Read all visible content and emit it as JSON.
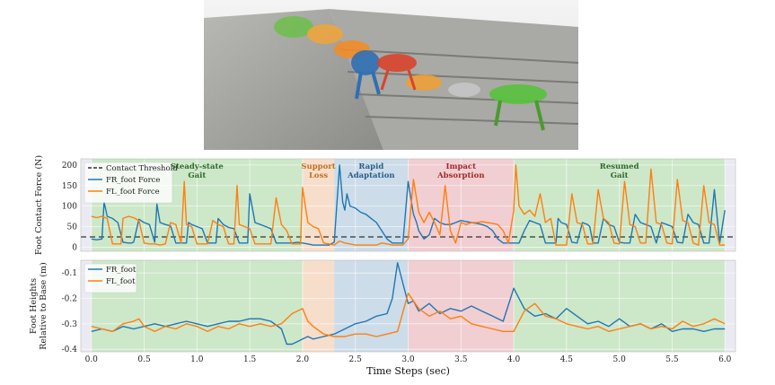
{
  "photo": {
    "description_icon": "robot-stair-climbing-image"
  },
  "colors": {
    "fr": "#1f77b4",
    "fl": "#ff7f0e",
    "threshold": "#333333",
    "phase_green": "#c8e6c2",
    "phase_orange": "#f9dcc4",
    "phase_blue": "#c7d9e8",
    "phase_red": "#f2c9cc",
    "plot_bg": "#eaeaf2"
  },
  "phases": [
    {
      "label": "Steady-state\nGait",
      "start": 0.0,
      "end": 2.0,
      "color": "#c8e6c2",
      "text_color": "#2e6b2a"
    },
    {
      "label": "Support\nLoss",
      "start": 2.0,
      "end": 2.3,
      "color": "#f9dcc4",
      "text_color": "#c0701f"
    },
    {
      "label": "Rapid\nAdaptation",
      "start": 2.3,
      "end": 3.0,
      "color": "#c7d9e8",
      "text_color": "#2a5d8a"
    },
    {
      "label": "Impact\nAbsorption",
      "start": 3.0,
      "end": 4.0,
      "color": "#f2c9cc",
      "text_color": "#a02a2a"
    },
    {
      "label": "Resumed\nGait",
      "start": 4.0,
      "end": 6.0,
      "color": "#c8e6c2",
      "text_color": "#2e6b2a"
    }
  ],
  "chart_data": [
    {
      "type": "line",
      "ylabel": "Foot Contact Force (N)",
      "xlim": [
        -0.1,
        6.1
      ],
      "ylim": [
        -10,
        215
      ],
      "yticks": [
        0,
        50,
        100,
        150,
        200
      ],
      "grid": true,
      "legend_position": "upper-left",
      "threshold": {
        "name": "Contact Threshold",
        "value": 25
      },
      "series": [
        {
          "name": "FR_foot Force",
          "color": "#1f77b4",
          "x": [
            0.0,
            0.05,
            0.1,
            0.12,
            0.15,
            0.2,
            0.25,
            0.3,
            0.35,
            0.38,
            0.4,
            0.45,
            0.5,
            0.55,
            0.6,
            0.62,
            0.65,
            0.7,
            0.75,
            0.8,
            0.85,
            0.9,
            0.92,
            0.95,
            1.0,
            1.05,
            1.1,
            1.15,
            1.18,
            1.2,
            1.25,
            1.3,
            1.35,
            1.4,
            1.45,
            1.48,
            1.5,
            1.55,
            1.6,
            1.65,
            1.7,
            1.75,
            1.78,
            1.8,
            1.85,
            1.9,
            1.95,
            2.0,
            2.05,
            2.1,
            2.15,
            2.2,
            2.25,
            2.3,
            2.35,
            2.38,
            2.4,
            2.42,
            2.45,
            2.5,
            2.55,
            2.6,
            2.65,
            2.7,
            2.75,
            2.8,
            2.85,
            2.9,
            2.95,
            3.0,
            3.05,
            3.08,
            3.1,
            3.15,
            3.2,
            3.25,
            3.3,
            3.35,
            3.4,
            3.45,
            3.5,
            3.55,
            3.6,
            3.65,
            3.7,
            3.75,
            3.8,
            3.85,
            3.9,
            3.95,
            4.0,
            4.05,
            4.1,
            4.15,
            4.2,
            4.25,
            4.3,
            4.35,
            4.4,
            4.42,
            4.45,
            4.5,
            4.55,
            4.6,
            4.65,
            4.7,
            4.72,
            4.75,
            4.8,
            4.85,
            4.9,
            4.95,
            5.0,
            5.05,
            5.1,
            5.15,
            5.2,
            5.25,
            5.3,
            5.35,
            5.4,
            5.45,
            5.5,
            5.55,
            5.6,
            5.65,
            5.7,
            5.75,
            5.8,
            5.85,
            5.9,
            5.95,
            6.0
          ],
          "values": [
            20,
            18,
            20,
            110,
            75,
            70,
            60,
            12,
            10,
            10,
            12,
            68,
            60,
            55,
            12,
            105,
            60,
            55,
            52,
            10,
            10,
            10,
            60,
            55,
            50,
            45,
            10,
            10,
            10,
            70,
            55,
            48,
            45,
            10,
            10,
            10,
            130,
            60,
            55,
            50,
            45,
            10,
            10,
            10,
            10,
            10,
            12,
            10,
            8,
            5,
            5,
            5,
            5,
            12,
            200,
            110,
            90,
            130,
            100,
            95,
            85,
            80,
            70,
            60,
            40,
            20,
            10,
            10,
            10,
            160,
            80,
            60,
            40,
            20,
            30,
            70,
            60,
            55,
            55,
            60,
            65,
            62,
            60,
            58,
            55,
            50,
            40,
            20,
            10,
            10,
            10,
            10,
            40,
            65,
            60,
            55,
            10,
            10,
            10,
            70,
            60,
            55,
            12,
            10,
            60,
            55,
            50,
            10,
            10,
            70,
            55,
            50,
            12,
            10,
            10,
            80,
            60,
            55,
            50,
            10,
            60,
            55,
            50,
            12,
            10,
            80,
            60,
            55,
            10,
            10,
            140,
            10,
            90
          ]
        },
        {
          "name": "FL_foot Force",
          "color": "#ff7f0e",
          "x": [
            0.0,
            0.05,
            0.1,
            0.15,
            0.2,
            0.25,
            0.28,
            0.3,
            0.35,
            0.4,
            0.45,
            0.5,
            0.55,
            0.6,
            0.65,
            0.7,
            0.75,
            0.8,
            0.85,
            0.88,
            0.9,
            0.95,
            1.0,
            1.05,
            1.1,
            1.15,
            1.2,
            1.25,
            1.3,
            1.35,
            1.38,
            1.4,
            1.45,
            1.5,
            1.55,
            1.6,
            1.65,
            1.7,
            1.75,
            1.8,
            1.85,
            1.9,
            1.95,
            1.98,
            2.0,
            2.05,
            2.1,
            2.15,
            2.2,
            2.25,
            2.3,
            2.35,
            2.4,
            2.45,
            2.5,
            2.55,
            2.6,
            2.65,
            2.7,
            2.75,
            2.8,
            2.85,
            2.9,
            2.95,
            3.0,
            3.05,
            3.1,
            3.15,
            3.2,
            3.25,
            3.3,
            3.35,
            3.4,
            3.45,
            3.5,
            3.55,
            3.6,
            3.65,
            3.7,
            3.75,
            3.8,
            3.85,
            3.9,
            3.95,
            4.0,
            4.02,
            4.05,
            4.1,
            4.15,
            4.2,
            4.25,
            4.3,
            4.35,
            4.4,
            4.45,
            4.5,
            4.55,
            4.6,
            4.65,
            4.7,
            4.75,
            4.8,
            4.85,
            4.9,
            4.95,
            5.0,
            5.05,
            5.1,
            5.15,
            5.2,
            5.25,
            5.3,
            5.35,
            5.4,
            5.45,
            5.5,
            5.55,
            5.6,
            5.65,
            5.7,
            5.75,
            5.8,
            5.85,
            5.9,
            5.95,
            6.0
          ],
          "values": [
            75,
            72,
            75,
            70,
            8,
            8,
            8,
            70,
            75,
            72,
            65,
            10,
            8,
            8,
            5,
            8,
            60,
            55,
            10,
            160,
            55,
            50,
            8,
            8,
            8,
            65,
            55,
            50,
            8,
            8,
            150,
            55,
            50,
            45,
            8,
            8,
            8,
            8,
            120,
            55,
            40,
            8,
            8,
            8,
            145,
            60,
            50,
            45,
            10,
            8,
            5,
            15,
            10,
            8,
            5,
            5,
            5,
            5,
            5,
            10,
            8,
            5,
            5,
            5,
            20,
            165,
            85,
            60,
            85,
            60,
            30,
            150,
            40,
            10,
            60,
            55,
            60,
            60,
            62,
            60,
            58,
            55,
            40,
            10,
            90,
            200,
            100,
            80,
            90,
            75,
            130,
            60,
            70,
            5,
            5,
            5,
            130,
            60,
            55,
            8,
            8,
            140,
            70,
            60,
            10,
            8,
            160,
            55,
            50,
            10,
            10,
            190,
            60,
            55,
            10,
            8,
            165,
            65,
            60,
            10,
            5,
            150,
            60,
            55,
            5,
            5
          ]
        }
      ]
    },
    {
      "type": "line",
      "ylabel": "Foot Heights\nRelative to Base (m)",
      "xlabel": "Time Steps (sec)",
      "xlim": [
        -0.1,
        6.1
      ],
      "ylim": [
        -0.41,
        -0.05
      ],
      "yticks": [
        -0.4,
        -0.3,
        -0.2,
        -0.1
      ],
      "xticks": [
        0.0,
        0.5,
        1.0,
        1.5,
        2.0,
        2.5,
        3.0,
        3.5,
        4.0,
        4.5,
        5.0,
        5.5,
        6.0
      ],
      "grid": true,
      "legend_position": "upper-left",
      "series": [
        {
          "name": "FR_foot",
          "color": "#1f77b4",
          "x": [
            0.0,
            0.1,
            0.2,
            0.3,
            0.4,
            0.5,
            0.6,
            0.7,
            0.8,
            0.9,
            1.0,
            1.1,
            1.2,
            1.3,
            1.4,
            1.5,
            1.6,
            1.7,
            1.8,
            1.85,
            1.9,
            1.95,
            2.0,
            2.05,
            2.1,
            2.2,
            2.3,
            2.4,
            2.5,
            2.6,
            2.7,
            2.8,
            2.85,
            2.9,
            2.95,
            3.0,
            3.05,
            3.1,
            3.2,
            3.3,
            3.4,
            3.5,
            3.6,
            3.7,
            3.8,
            3.9,
            4.0,
            4.1,
            4.2,
            4.3,
            4.4,
            4.5,
            4.6,
            4.7,
            4.8,
            4.9,
            5.0,
            5.1,
            5.2,
            5.3,
            5.4,
            5.5,
            5.6,
            5.7,
            5.8,
            5.9,
            6.0
          ],
          "values": [
            -0.33,
            -0.32,
            -0.33,
            -0.31,
            -0.32,
            -0.31,
            -0.3,
            -0.31,
            -0.3,
            -0.29,
            -0.3,
            -0.31,
            -0.3,
            -0.29,
            -0.29,
            -0.28,
            -0.28,
            -0.29,
            -0.32,
            -0.38,
            -0.38,
            -0.37,
            -0.36,
            -0.35,
            -0.36,
            -0.35,
            -0.34,
            -0.32,
            -0.3,
            -0.29,
            -0.27,
            -0.26,
            -0.2,
            -0.06,
            -0.14,
            -0.22,
            -0.21,
            -0.25,
            -0.22,
            -0.26,
            -0.24,
            -0.25,
            -0.23,
            -0.25,
            -0.27,
            -0.29,
            -0.16,
            -0.24,
            -0.27,
            -0.26,
            -0.28,
            -0.24,
            -0.27,
            -0.3,
            -0.29,
            -0.31,
            -0.28,
            -0.31,
            -0.3,
            -0.32,
            -0.3,
            -0.33,
            -0.32,
            -0.32,
            -0.33,
            -0.32,
            -0.32
          ]
        },
        {
          "name": "FL_foot",
          "color": "#ff7f0e",
          "x": [
            0.0,
            0.1,
            0.2,
            0.3,
            0.4,
            0.45,
            0.5,
            0.6,
            0.7,
            0.8,
            0.9,
            1.0,
            1.1,
            1.2,
            1.3,
            1.4,
            1.5,
            1.6,
            1.7,
            1.8,
            1.9,
            2.0,
            2.05,
            2.1,
            2.2,
            2.3,
            2.4,
            2.5,
            2.6,
            2.7,
            2.8,
            2.9,
            3.0,
            3.1,
            3.2,
            3.3,
            3.4,
            3.5,
            3.6,
            3.7,
            3.8,
            3.9,
            4.0,
            4.1,
            4.2,
            4.3,
            4.4,
            4.5,
            4.6,
            4.7,
            4.8,
            4.9,
            5.0,
            5.1,
            5.2,
            5.3,
            5.4,
            5.5,
            5.6,
            5.7,
            5.8,
            5.9,
            6.0
          ],
          "values": [
            -0.31,
            -0.32,
            -0.33,
            -0.3,
            -0.29,
            -0.28,
            -0.31,
            -0.33,
            -0.31,
            -0.32,
            -0.3,
            -0.31,
            -0.33,
            -0.31,
            -0.32,
            -0.3,
            -0.31,
            -0.3,
            -0.31,
            -0.3,
            -0.26,
            -0.24,
            -0.29,
            -0.31,
            -0.34,
            -0.35,
            -0.35,
            -0.34,
            -0.34,
            -0.35,
            -0.34,
            -0.33,
            -0.18,
            -0.24,
            -0.27,
            -0.25,
            -0.28,
            -0.27,
            -0.3,
            -0.31,
            -0.32,
            -0.33,
            -0.33,
            -0.25,
            -0.22,
            -0.27,
            -0.28,
            -0.3,
            -0.31,
            -0.32,
            -0.31,
            -0.33,
            -0.32,
            -0.31,
            -0.3,
            -0.32,
            -0.31,
            -0.32,
            -0.29,
            -0.31,
            -0.3,
            -0.28,
            -0.3
          ]
        }
      ]
    }
  ]
}
